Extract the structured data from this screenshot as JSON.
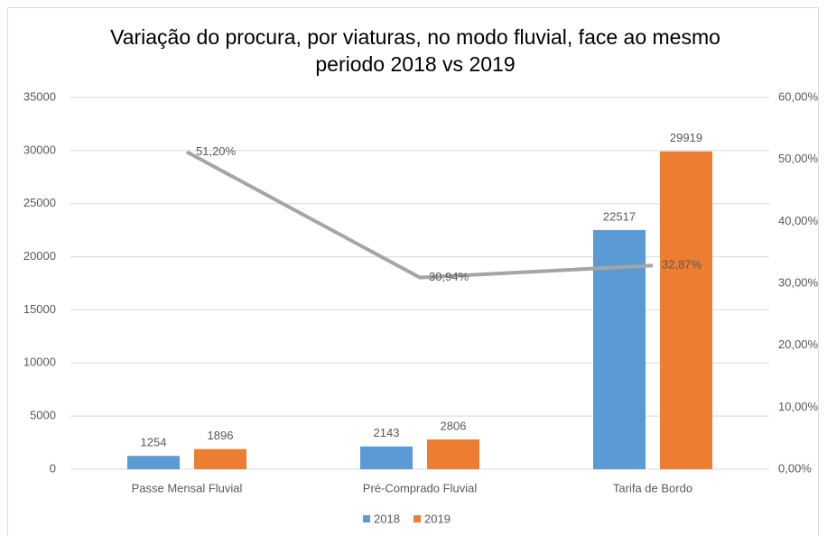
{
  "chart_data": {
    "type": "bar",
    "title": "Variação do procura, por viaturas, no modo fluvial, face ao mesmo periodo 2018 vs 2019",
    "categories": [
      "Passe Mensal Fluvial",
      "Pré-Comprado Fluvial",
      "Tarifa de Bordo"
    ],
    "series": [
      {
        "name": "2018",
        "color": "#5b9bd5",
        "values": [
          1254,
          2143,
          22517
        ]
      },
      {
        "name": "2019",
        "color": "#ed7d31",
        "values": [
          1896,
          2806,
          29919
        ]
      },
      {
        "type": "line",
        "axis": "y2",
        "color": "#a5a5a5",
        "values": [
          51.2,
          30.94,
          32.87
        ],
        "value_labels": [
          "51,20%",
          "30,94%",
          "32,87%"
        ]
      }
    ],
    "ylim": [
      0,
      35000
    ],
    "yticks": [
      0,
      5000,
      10000,
      15000,
      20000,
      25000,
      30000,
      35000
    ],
    "y2lim": [
      0,
      60
    ],
    "y2ticks": [
      {
        "value": 0,
        "label": "0,00%"
      },
      {
        "value": 10,
        "label": "10,00%"
      },
      {
        "value": 20,
        "label": "20,00%"
      },
      {
        "value": 30,
        "label": "30,00%"
      },
      {
        "value": 40,
        "label": "40,00%"
      },
      {
        "value": 50,
        "label": "50,00%"
      },
      {
        "value": 60,
        "label": "60,00%"
      }
    ],
    "grid": true,
    "legend": "bottom"
  }
}
